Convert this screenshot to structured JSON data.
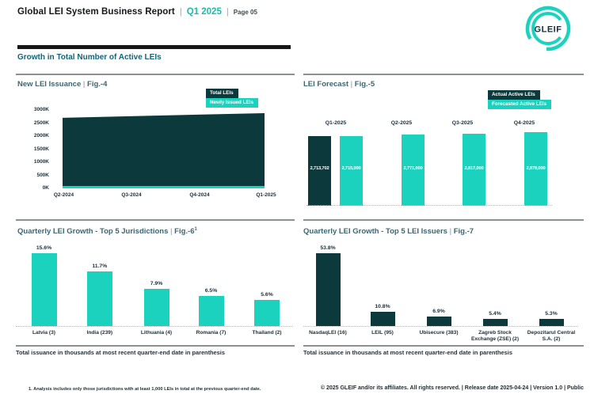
{
  "ui": {
    "divider": "|"
  },
  "colors": {
    "teal": "#1BD2BE",
    "dark": "#0C393B",
    "accent": "#13BFAD",
    "heading": "#156478",
    "title": "#3E6572",
    "axis": "#1B2F3A",
    "rule": "#8A9094",
    "black": "#14181B"
  },
  "header": {
    "title": "Global LEI System Business Report",
    "quarter": "Q1 2025",
    "page_label": "Page 05",
    "logo_text": "GLEIF"
  },
  "section": {
    "heading": "Growth in Total Number of Active LEIs"
  },
  "chart_data": [
    {
      "id": "fig4",
      "type": "area",
      "title": "New LEI Issuance",
      "fig_label": "Fig.-4",
      "x": [
        "Q2-2024",
        "Q3-2024",
        "Q4-2024",
        "Q1-2025"
      ],
      "series": [
        {
          "name": "Total LEIs",
          "color": "#0C393B",
          "values": [
            2700000,
            2760000,
            2820000,
            2880000
          ]
        },
        {
          "name": "Newly Issued LEIs",
          "color": "#1BD2BE",
          "values": [
            50000,
            50000,
            50000,
            50000
          ]
        }
      ],
      "y_ticks": [
        "3000K",
        "2500K",
        "2000K",
        "1500K",
        "1000K",
        "500K",
        "0K"
      ],
      "ylim": [
        0,
        3000000
      ],
      "legend_position": "top-right",
      "grid": false
    },
    {
      "id": "fig5",
      "type": "bar",
      "title": "LEI Forecast",
      "fig_label": "Fig.-5",
      "categories": [
        "Q1-2025",
        "Q2-2025",
        "Q3-2025",
        "Q4-2025"
      ],
      "series": [
        {
          "name": "Actual Active LEIs",
          "color": "#0C393B",
          "values": [
            2713702,
            null,
            null,
            null
          ]
        },
        {
          "name": "Forecasted Active LEIs",
          "color": "#1BD2BE",
          "values": [
            2715000,
            2771000,
            2817000,
            2878000
          ]
        }
      ],
      "ylim": [
        0,
        2878000
      ],
      "legend_position": "top-right",
      "value_labels": true,
      "grid": false
    },
    {
      "id": "fig6",
      "type": "bar",
      "title": "Quarterly LEI Growth - Top 5 Jurisdictions",
      "fig_label": "Fig.-6",
      "fig_sup": "1",
      "categories": [
        "Latvia (3)",
        "India (239)",
        "Lithuania (4)",
        "Romania (7)",
        "Thailand (2)"
      ],
      "values": [
        15.6,
        11.7,
        7.9,
        6.5,
        5.6
      ],
      "unit": "%",
      "color": "#1BD2BE",
      "value_labels": true,
      "grid": false,
      "caption": "Total issuance in thousands at most recent quarter-end date in parenthesis"
    },
    {
      "id": "fig7",
      "type": "bar",
      "title": "Quarterly LEI Growth - Top 5 LEI Issuers",
      "fig_label": "Fig.-7",
      "categories": [
        "NasdaqLEI (16)",
        "LEIL (95)",
        "Ubisecure (383)",
        "Zagreb Stock Exchange (ZSE) (2)",
        "Depozitarul Central S.A. (2)"
      ],
      "values": [
        53.8,
        10.8,
        6.9,
        5.4,
        5.3
      ],
      "unit": "%",
      "color": "#0C393B",
      "value_labels": true,
      "grid": false,
      "caption": "Total issuance in thousands at most recent quarter-end date in parenthesis"
    }
  ],
  "footnote": "1. Analysis includes only those jurisdictions with at least 1,000 LEIs in total at the previous quarter-end date.",
  "footer": "© 2025 GLEIF and/or its affiliates. All rights reserved. | Release date 2025-04-24 | Version 1.0 | Public"
}
